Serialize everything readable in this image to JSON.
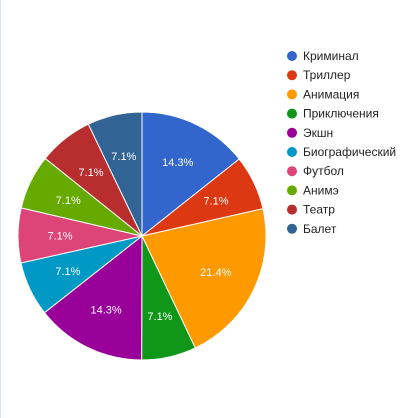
{
  "chart_data": {
    "type": "pie",
    "title": "",
    "legend_position": "right",
    "slices": [
      {
        "label": "Криминал",
        "value": 14.3,
        "value_label": "14.3%",
        "color": "#3366cc"
      },
      {
        "label": "Триллер",
        "value": 7.1,
        "value_label": "7.1%",
        "color": "#dc3912"
      },
      {
        "label": "Анимация",
        "value": 21.4,
        "value_label": "21.4%",
        "color": "#ff9900"
      },
      {
        "label": "Приключения",
        "value": 7.1,
        "value_label": "7.1%",
        "color": "#109618"
      },
      {
        "label": "Экшн",
        "value": 14.3,
        "value_label": "14.3%",
        "color": "#990099"
      },
      {
        "label": "Биографический",
        "value": 7.1,
        "value_label": "7.1%",
        "color": "#0099c6"
      },
      {
        "label": "Футбол",
        "value": 7.1,
        "value_label": "7.1%",
        "color": "#dd4477"
      },
      {
        "label": "Анимэ",
        "value": 7.1,
        "value_label": "7.1%",
        "color": "#66aa00"
      },
      {
        "label": "Театр",
        "value": 7.1,
        "value_label": "7.1%",
        "color": "#b82e2e"
      },
      {
        "label": "Балет",
        "value": 7.1,
        "value_label": "7.1%",
        "color": "#316395"
      }
    ]
  }
}
